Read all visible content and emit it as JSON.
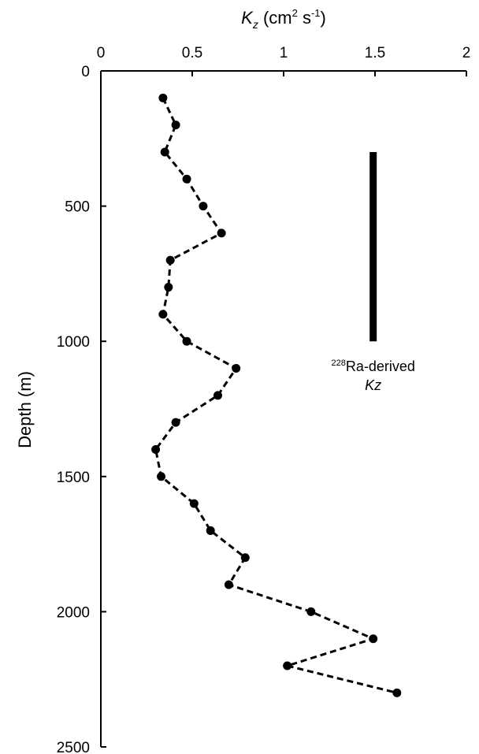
{
  "chart_data": {
    "type": "line",
    "title": "",
    "x_axis_label": {
      "symbol": "K",
      "subscript": "z",
      "unit_open": " (cm",
      "unit_sup": "2",
      "unit_mid": " s",
      "unit_sup2": "-1",
      "unit_close": ")"
    },
    "ylabel": "Depth (m)",
    "xlim": [
      0,
      2
    ],
    "ylim": [
      2500,
      0
    ],
    "y_inverted": true,
    "x_ticks": [
      "0",
      "0.5",
      "1",
      "1.5",
      "2"
    ],
    "x_tick_values": [
      0,
      0.5,
      1,
      1.5,
      2
    ],
    "y_ticks": [
      "0",
      "500",
      "1000",
      "1500",
      "2000",
      "2500"
    ],
    "y_tick_values": [
      0,
      500,
      1000,
      1500,
      2000,
      2500
    ],
    "x_axis_position": "top",
    "grid": false,
    "series": [
      {
        "style": "dashed line with circle markers",
        "color": "#000000",
        "kz": [
          0.34,
          0.41,
          0.35,
          0.47,
          0.56,
          0.66,
          0.38,
          0.37,
          0.34,
          0.47,
          0.74,
          0.64,
          0.41,
          0.3,
          0.33,
          0.51,
          0.6,
          0.79,
          0.7,
          1.15,
          1.49,
          1.02,
          1.62
        ],
        "depth": [
          100,
          200,
          300,
          400,
          500,
          600,
          700,
          800,
          900,
          1000,
          1100,
          1200,
          1300,
          1400,
          1500,
          1600,
          1700,
          1800,
          1900,
          2000,
          2100,
          2200,
          2300
        ]
      }
    ],
    "reference_bar": {
      "kz": 1.49,
      "depth_top": 300,
      "depth_bottom": 1000,
      "color": "#000000",
      "label_sup": "228",
      "label_main": "Ra-derived",
      "label_line2": "Kz"
    }
  }
}
